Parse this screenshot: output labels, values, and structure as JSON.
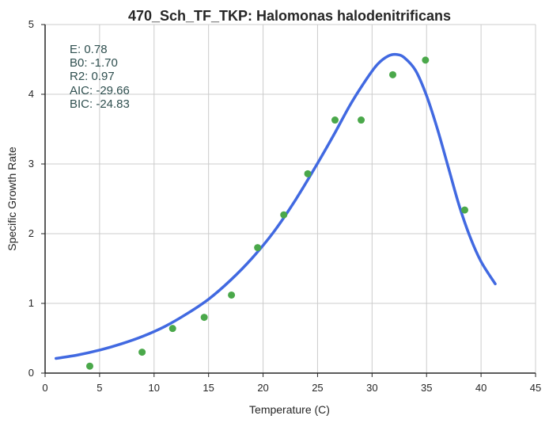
{
  "chart_data": {
    "type": "scatter",
    "title": "470_Sch_TF_TKP: Halomonas halodenitrificans",
    "xlabel": "Temperature (C)",
    "ylabel": "Specific Growth Rate",
    "xlim": [
      0,
      45
    ],
    "ylim": [
      0,
      5
    ],
    "xticks": [
      "0",
      "5",
      "10",
      "15",
      "20",
      "25",
      "30",
      "35",
      "40",
      "45"
    ],
    "yticks": [
      "0",
      "1",
      "2",
      "3",
      "4",
      "5"
    ],
    "grid": true,
    "annotations": [
      "E:  0.78",
      "B0:  -1.70",
      "R2:  0.97",
      "AIC: -29.66",
      "BIC: -24.83"
    ],
    "colors": {
      "points": "#4aa84a",
      "fit": "#4169e1",
      "grid": "#cccccc",
      "annotation": "#2f4f4f"
    },
    "series": [
      {
        "name": "observed",
        "kind": "scatter",
        "x": [
          4.1,
          8.9,
          11.7,
          14.6,
          17.1,
          19.5,
          21.9,
          24.1,
          26.6,
          29.0,
          31.9,
          34.9,
          38.5
        ],
        "y": [
          0.1,
          0.3,
          0.64,
          0.8,
          1.12,
          1.8,
          2.27,
          2.86,
          3.63,
          3.63,
          4.28,
          4.49,
          2.34
        ]
      },
      {
        "name": "fit",
        "kind": "line",
        "x": [
          1.0,
          3.0,
          5.0,
          7.0,
          9.0,
          11.0,
          13.0,
          15.0,
          17.0,
          19.0,
          21.0,
          23.0,
          25.0,
          26.5,
          28.0,
          29.5,
          30.5,
          31.5,
          32.3,
          33.0,
          34.0,
          35.0,
          36.0,
          37.0,
          38.0,
          39.0,
          40.0,
          41.3
        ],
        "y": [
          0.21,
          0.26,
          0.33,
          0.42,
          0.53,
          0.67,
          0.85,
          1.06,
          1.33,
          1.65,
          2.03,
          2.49,
          3.01,
          3.42,
          3.85,
          4.22,
          4.43,
          4.55,
          4.57,
          4.52,
          4.34,
          3.98,
          3.5,
          2.95,
          2.4,
          1.95,
          1.6,
          1.28
        ]
      }
    ]
  }
}
